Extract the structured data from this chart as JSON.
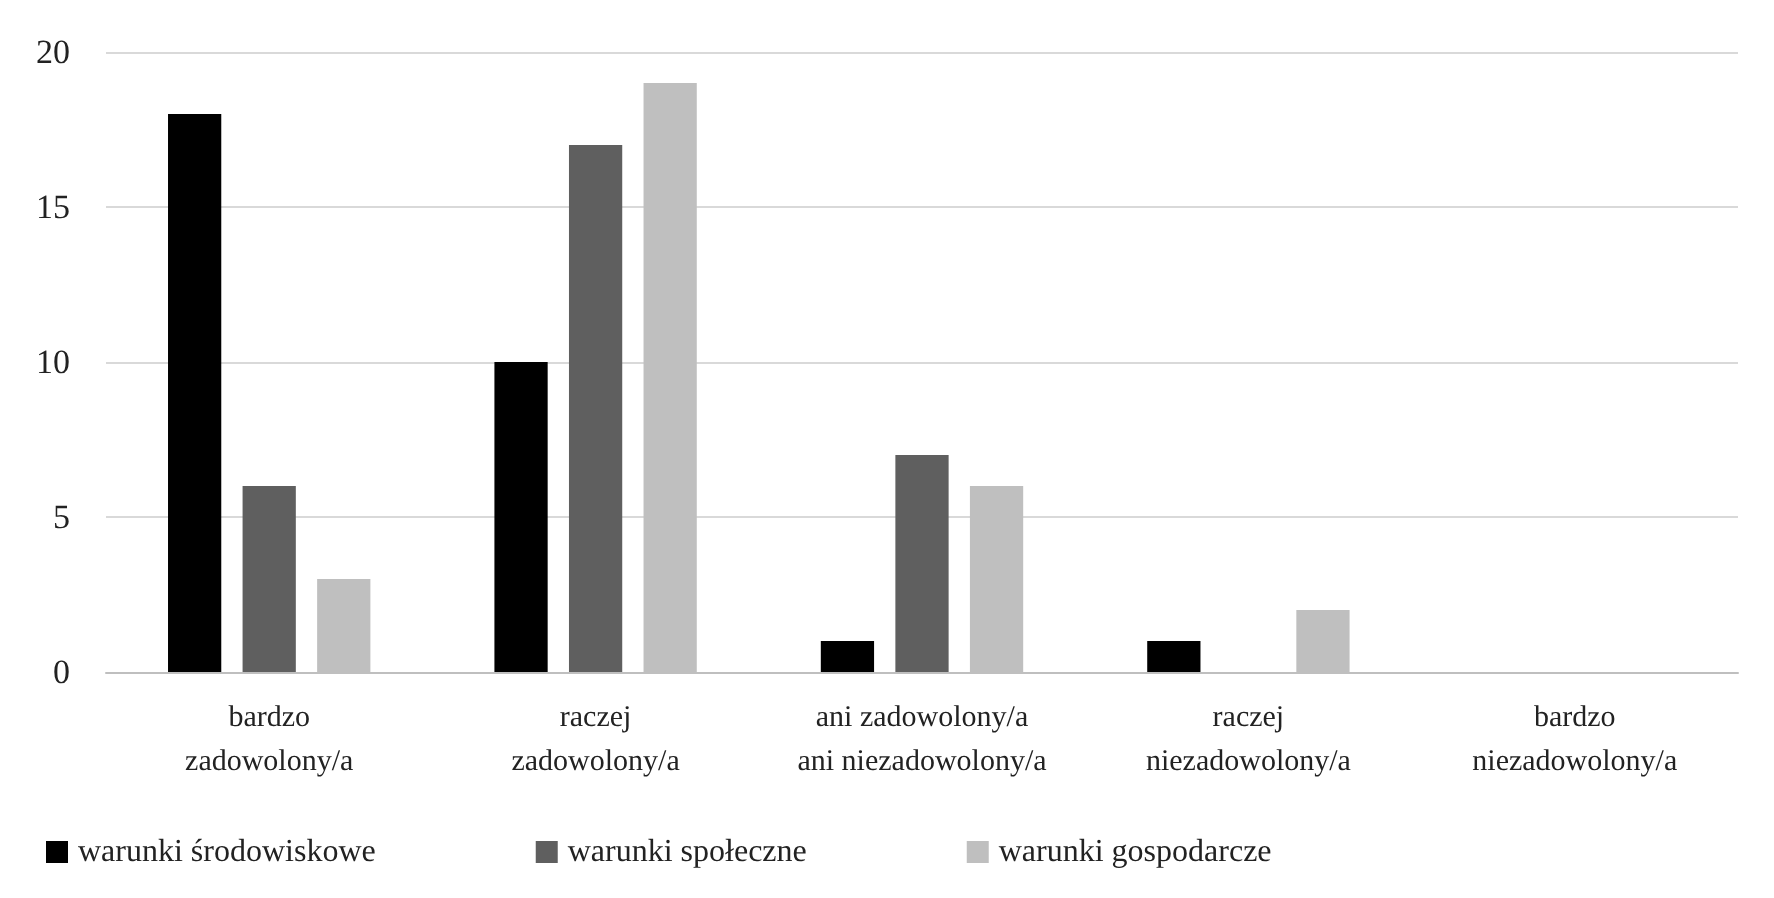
{
  "chart_data": {
    "type": "bar",
    "categories": [
      "bardzo\nzadowolony/a",
      "raczej\nzadowolony/a",
      "ani zadowolony/a\nani niezadowolony/a",
      "raczej\nniezadowolony/a",
      "bardzo\nniezadowolony/a"
    ],
    "series": [
      {
        "name": "warunki środowiskowe",
        "color": "#000000",
        "values": [
          18,
          10,
          1,
          1,
          0
        ]
      },
      {
        "name": "warunki społeczne",
        "color": "#5f5f5f",
        "values": [
          6,
          17,
          7,
          0,
          0
        ]
      },
      {
        "name": "warunki gospodarcze",
        "color": "#bfbfbf",
        "values": [
          3,
          19,
          6,
          2,
          0
        ]
      }
    ],
    "ylim": [
      0,
      20
    ],
    "yticks": [
      0,
      5,
      10,
      15,
      20
    ],
    "grid": "y",
    "legend": "bottom"
  }
}
